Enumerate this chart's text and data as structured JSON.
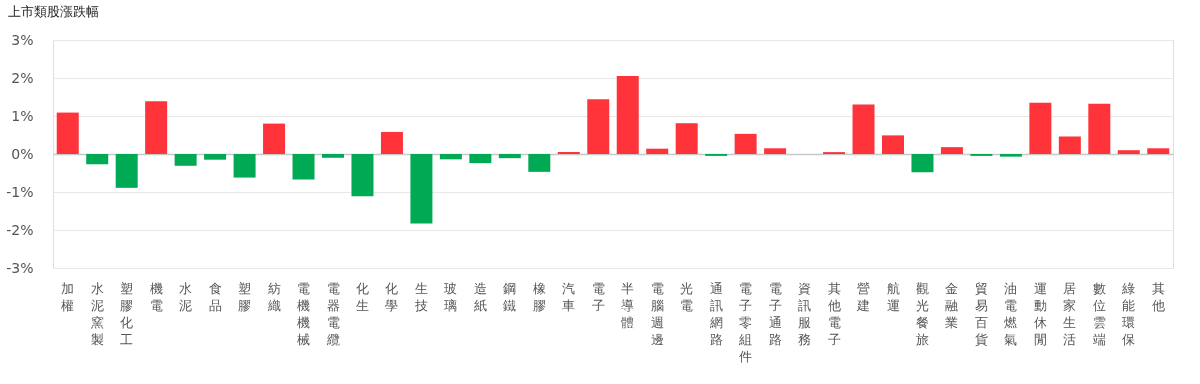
{
  "chart_data": {
    "type": "bar",
    "title": "上市類股漲跌幅",
    "categories": [
      "加權",
      "水泥窯製",
      "塑膠化工",
      "機電",
      "水泥",
      "食品",
      "塑膠",
      "紡織",
      "電機機械",
      "電器電纜",
      "化生",
      "化學",
      "生技",
      "玻璃",
      "造紙",
      "鋼鐵",
      "橡膠",
      "汽車",
      "電子",
      "半導體",
      "電腦週邊",
      "光電",
      "通訊網路",
      "電子零組件",
      "電子通路",
      "資訊服務",
      "其他電子",
      "營建",
      "航運",
      "觀光餐旅",
      "金融業",
      "貿易百貨",
      "油電燃氣",
      "運動休閒",
      "居家生活",
      "數位雲端",
      "綠能環保",
      "其他"
    ],
    "values": [
      1.09,
      -0.27,
      -0.89,
      1.39,
      -0.31,
      -0.15,
      -0.62,
      0.8,
      -0.67,
      -0.1,
      -1.11,
      0.58,
      -1.83,
      -0.14,
      -0.24,
      -0.11,
      -0.47,
      0.05,
      1.44,
      2.05,
      0.14,
      0.81,
      -0.05,
      0.53,
      0.15,
      null,
      0.05,
      1.3,
      0.49,
      -0.48,
      0.18,
      -0.05,
      -0.07,
      1.35,
      0.46,
      1.32,
      0.1,
      0.15
    ],
    "colors": [
      "#ff333a",
      "#00aa55",
      "#00aa55",
      "#ff333a",
      "#00aa55",
      "#00aa55",
      "#00aa55",
      "#ff333a",
      "#00aa55",
      "#00aa55",
      "#00aa55",
      "#ff333a",
      "#00aa55",
      "#00aa55",
      "#00aa55",
      "#00aa55",
      "#00aa55",
      "#ff333a",
      "#ff333a",
      "#ff333a",
      "#ff333a",
      "#ff333a",
      "#00aa55",
      "#ff333a",
      "#ff333a",
      "#ff333a",
      "#ff333a",
      "#ff333a",
      "#ff333a",
      "#00aa55",
      "#ff333a",
      "#00aa55",
      "#00aa55",
      "#ff333a",
      "#ff333a",
      "#ff333a",
      "#ff333a",
      "#ff333a"
    ],
    "ylim": [
      -3,
      3
    ],
    "yticks": [
      {
        "value": -3,
        "label": "-3%"
      },
      {
        "value": -2,
        "label": "-2%"
      },
      {
        "value": -1,
        "label": "-1%"
      },
      {
        "value": 0,
        "label": "0%"
      },
      {
        "value": 1,
        "label": "1%"
      },
      {
        "value": 2,
        "label": "2%"
      },
      {
        "value": 3,
        "label": "3%"
      }
    ],
    "grid": "y",
    "legend": false
  }
}
